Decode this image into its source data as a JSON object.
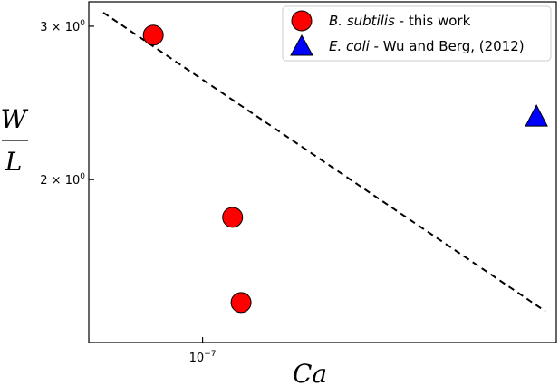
{
  "chart_data": {
    "type": "scatter",
    "xscale": "log",
    "yscale": "log",
    "xlabel": "Ca",
    "ylabel": {
      "numerator": "W",
      "denominator": "L"
    },
    "xlim": [
      3.7e-08,
      2.2e-06
    ],
    "ylim": [
      1.3,
      3.2
    ],
    "xticks": [
      {
        "value": 1e-07,
        "base": "10",
        "exp": "−7"
      }
    ],
    "yticks": [
      {
        "value": 2.0,
        "mant": "2 × 10",
        "exp": "0"
      },
      {
        "value": 3.0,
        "mant": "3 × 10",
        "exp": "0"
      }
    ],
    "grid": false,
    "legend_position": "top-right",
    "series": [
      {
        "name_italic": "B.  subtilis",
        "name_rest": " - this work",
        "marker": "circle",
        "color": "#ff0000",
        "points": [
          {
            "x": 6.5e-08,
            "y": 2.93
          },
          {
            "x": 1.3e-07,
            "y": 1.81
          },
          {
            "x": 1.4e-07,
            "y": 1.445
          }
        ]
      },
      {
        "name_italic": "E.  coli",
        "name_rest": " - Wu and Berg, (2012)",
        "marker": "triangle",
        "color": "#0000ff",
        "points": [
          {
            "x": 1.85e-06,
            "y": 2.36
          }
        ]
      }
    ],
    "fit_line": {
      "style": "dashed",
      "color": "#000000",
      "points": [
        {
          "x": 4.2e-08,
          "y": 3.11
        },
        {
          "x": 2e-06,
          "y": 1.412
        }
      ]
    }
  }
}
